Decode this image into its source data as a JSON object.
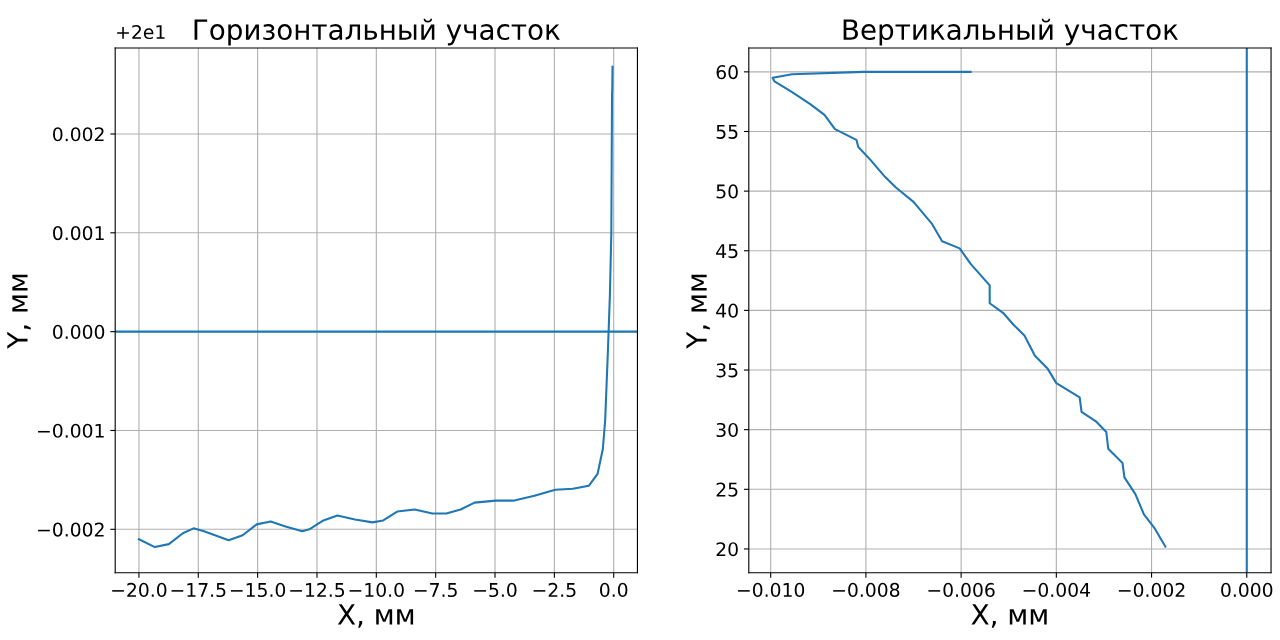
{
  "chart_data": [
    {
      "type": "line",
      "title": "Горизонтальный участок",
      "xlabel": "X, мм",
      "ylabel": "Y, мм",
      "grid": true,
      "legend": false,
      "marker": "none",
      "line_style": "solid",
      "annotations": [
        "+2e1"
      ],
      "xlim": [
        -21.0,
        1.0
      ],
      "xticks": [
        {
          "value": -20,
          "label": "−20.0"
        },
        {
          "value": -17.5,
          "label": "−17.5"
        },
        {
          "value": -15,
          "label": "−15.0"
        },
        {
          "value": -12.5,
          "label": "−12.5"
        },
        {
          "value": -10,
          "label": "−10.0"
        },
        {
          "value": -7.5,
          "label": "−7.5"
        },
        {
          "value": -5,
          "label": "−5.0"
        },
        {
          "value": -2.5,
          "label": "−2.5"
        },
        {
          "value": 0,
          "label": "0.0"
        }
      ],
      "ylim": [
        -0.00244,
        0.00287
      ],
      "yticks": [
        {
          "value": -0.002,
          "label": "−0.002"
        },
        {
          "value": -0.001,
          "label": "−0.001"
        },
        {
          "value": 0.0,
          "label": "0.000"
        },
        {
          "value": 0.001,
          "label": "0.001"
        },
        {
          "value": 0.002,
          "label": "0.002"
        }
      ],
      "ref_lines": [
        {
          "axis": "y",
          "value": 0.0,
          "label": null,
          "color": "#1f77b4"
        }
      ],
      "series": [
        {
          "color": "#1f77b4",
          "x": [
            -20,
            -19.33,
            -18.74,
            -18.15,
            -17.7,
            -17.26,
            -16.22,
            -15.63,
            -15.04,
            -14.45,
            -13.86,
            -13.12,
            -12.82,
            -12.23,
            -11.64,
            -10.9,
            -10.16,
            -9.71,
            -9.12,
            -8.38,
            -7.64,
            -7.05,
            -6.45,
            -5.86,
            -4.97,
            -4.23,
            -3.34,
            -2.46,
            -1.72,
            -1.05,
            -0.68,
            -0.46,
            -0.36,
            -0.24,
            -0.16,
            -0.1,
            -0.07,
            -0.06,
            -0.05
          ],
          "values": [
            -0.0021,
            -0.00218,
            -0.00215,
            -0.00204,
            -0.00199,
            -0.00202,
            -0.00211,
            -0.00206,
            -0.00195,
            -0.00192,
            -0.00197,
            -0.00202,
            -0.002,
            -0.00191,
            -0.00186,
            -0.0019,
            -0.00193,
            -0.00191,
            -0.00182,
            -0.0018,
            -0.00184,
            -0.00184,
            -0.0018,
            -0.00173,
            -0.00171,
            -0.00171,
            -0.00166,
            -0.0016,
            -0.00159,
            -0.00156,
            -0.00144,
            -0.00119,
            -0.0009,
            -0.00017,
            0.00037,
            0.001,
            0.0024,
            0.00245,
            0.00268
          ]
        }
      ]
    },
    {
      "type": "line",
      "title": "Вертикальный участок",
      "xlabel": "X, мм",
      "ylabel": "Y, мм",
      "grid": true,
      "legend": false,
      "marker": "none",
      "line_style": "solid",
      "xlim": [
        -0.01046,
        0.00051
      ],
      "xticks": [
        {
          "value": -0.01,
          "label": "−0.010"
        },
        {
          "value": -0.008,
          "label": "−0.008"
        },
        {
          "value": -0.006,
          "label": "−0.006"
        },
        {
          "value": -0.004,
          "label": "−0.004"
        },
        {
          "value": -0.002,
          "label": "−0.002"
        },
        {
          "value": 0,
          "label": "0.000"
        }
      ],
      "ylim": [
        18,
        62
      ],
      "yticks": [
        20,
        25,
        30,
        35,
        40,
        45,
        50,
        55,
        60
      ],
      "ref_lines": [
        {
          "axis": "x",
          "value": 0,
          "label": null,
          "color": "#1f77b4"
        }
      ],
      "series": [
        {
          "color": "#1f77b4",
          "x": [
            -0.00171,
            -0.00193,
            -0.00216,
            -0.00234,
            -0.00257,
            -0.00261,
            -0.00291,
            -0.00295,
            -0.00317,
            -0.00347,
            -0.00351,
            -0.004,
            -0.00418,
            -0.00445,
            -0.00467,
            -0.0049,
            -0.00512,
            -0.0054,
            -0.0054,
            -0.0058,
            -0.00603,
            -0.0064,
            -0.00662,
            -0.007,
            -0.00737,
            -0.0076,
            -0.0079,
            -0.00816,
            -0.0082,
            -0.00865,
            -0.00887,
            -0.00917,
            -0.00955,
            -0.00992,
            -0.00996,
            -0.00955,
            -0.00805,
            -0.0058
          ],
          "values": [
            20.2,
            21.7,
            22.9,
            24.6,
            26.0,
            27.2,
            28.4,
            29.8,
            30.7,
            31.5,
            32.7,
            33.9,
            35.1,
            36.2,
            37.9,
            38.8,
            39.8,
            40.6,
            42.1,
            43.9,
            45.2,
            45.8,
            47.3,
            49.1,
            50.3,
            51.2,
            52.6,
            53.7,
            54.3,
            55.2,
            56.4,
            57.3,
            58.3,
            59.2,
            59.5,
            59.8,
            60.0,
            60.0
          ]
        }
      ]
    }
  ]
}
